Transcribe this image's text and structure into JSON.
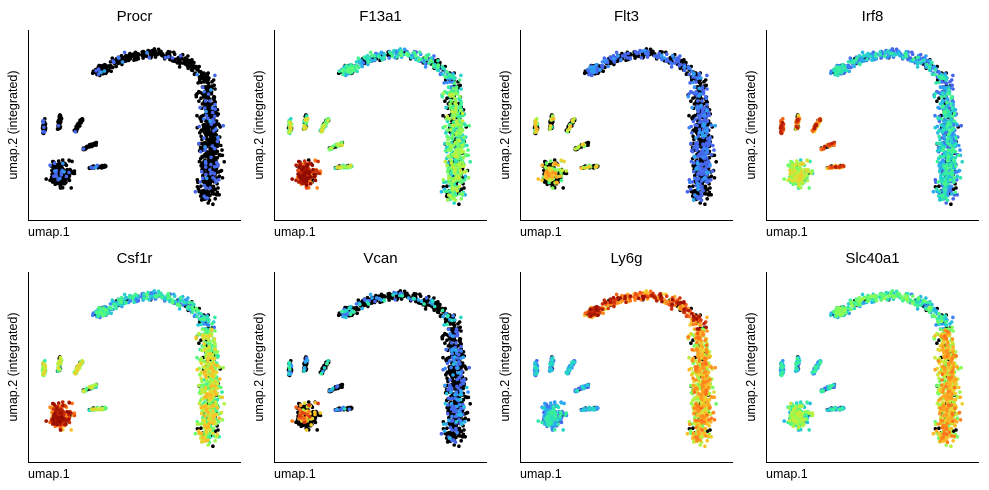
{
  "chart_data": [
    {
      "type": "scatter",
      "title": "Procr",
      "xlabel": "umap.1",
      "ylabel": "umap.2 (integrated)",
      "colormap": "turbo",
      "background_color": "#000000",
      "grid": false,
      "expression": {
        "left_cluster": 0.05,
        "left_patch": 0.05,
        "arc_top": 0.05,
        "arc_lower": 0.03,
        "fraction_expressing": 0.08
      }
    },
    {
      "type": "scatter",
      "title": "F13a1",
      "xlabel": "umap.1",
      "ylabel": "umap.2 (integrated)",
      "colormap": "turbo",
      "background_color": "#000000",
      "grid": false,
      "expression": {
        "left_cluster": 0.45,
        "left_patch": 0.85,
        "arc_top": 0.25,
        "arc_lower": 0.4,
        "fraction_expressing": 0.7
      }
    },
    {
      "type": "scatter",
      "title": "Flt3",
      "xlabel": "umap.1",
      "ylabel": "umap.2 (integrated)",
      "colormap": "turbo",
      "background_color": "#000000",
      "grid": false,
      "expression": {
        "left_cluster": 0.5,
        "left_patch": 0.55,
        "arc_top": 0.05,
        "arc_lower": 0.05,
        "fraction_expressing": 0.35
      }
    },
    {
      "type": "scatter",
      "title": "Irf8",
      "xlabel": "umap.1",
      "ylabel": "umap.2 (integrated)",
      "colormap": "turbo",
      "background_color": "#000000",
      "grid": false,
      "expression": {
        "left_cluster": 0.75,
        "left_patch": 0.45,
        "arc_top": 0.2,
        "arc_lower": 0.22,
        "fraction_expressing": 0.85
      }
    },
    {
      "type": "scatter",
      "title": "Csf1r",
      "xlabel": "umap.1",
      "ylabel": "umap.2 (integrated)",
      "colormap": "turbo",
      "background_color": "#000000",
      "grid": false,
      "expression": {
        "left_cluster": 0.45,
        "left_patch": 0.8,
        "arc_top": 0.25,
        "arc_lower": 0.5,
        "fraction_expressing": 0.85
      }
    },
    {
      "type": "scatter",
      "title": "Vcan",
      "xlabel": "umap.1",
      "ylabel": "umap.2 (integrated)",
      "colormap": "turbo",
      "background_color": "#000000",
      "grid": false,
      "expression": {
        "left_cluster": 0.2,
        "left_patch": 0.7,
        "arc_top": 0.2,
        "arc_lower": 0.1,
        "fraction_expressing": 0.22
      }
    },
    {
      "type": "scatter",
      "title": "Ly6g",
      "xlabel": "umap.1",
      "ylabel": "umap.2 (integrated)",
      "colormap": "turbo",
      "background_color": "#000000",
      "grid": false,
      "expression": {
        "left_cluster": 0.15,
        "left_patch": 0.2,
        "arc_top": 0.78,
        "arc_lower": 0.6,
        "fraction_expressing": 0.9
      }
    },
    {
      "type": "scatter",
      "title": "Slc40a1",
      "xlabel": "umap.1",
      "ylabel": "umap.2 (integrated)",
      "colormap": "turbo",
      "background_color": "#000000",
      "grid": false,
      "expression": {
        "left_cluster": 0.2,
        "left_patch": 0.4,
        "arc_top": 0.33,
        "arc_lower": 0.6,
        "fraction_expressing": 0.9
      }
    }
  ]
}
